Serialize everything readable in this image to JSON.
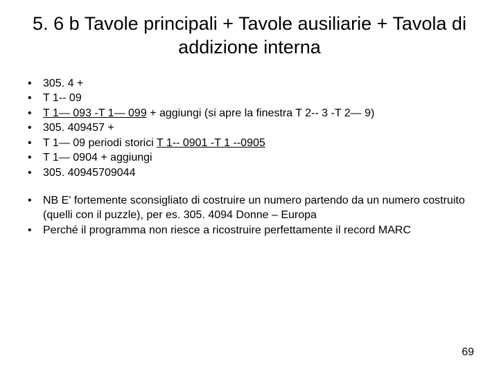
{
  "title": "5. 6 b Tavole principali + Tavole ausiliarie + Tavola di addizione interna",
  "list1": {
    "i0": "305. 4 +",
    "i1": "T 1-- 09",
    "i2a": "T 1— 093 -T 1— 099",
    "i2b": " + aggiungi (si apre la finestra T 2-- 3 -T 2— 9)",
    "i3": "305. 409457 +",
    "i4a": "T 1— 09  periodi storici ",
    "i4b": "T 1-- 0901 -T 1 --0905",
    "i5": "T 1— 0904 + aggiungi",
    "i6": " 305. 40945709044"
  },
  "list2": {
    "i0": "NB E' fortemente sconsigliato di costruire un numero partendo da un numero costruito (quelli con il puzzle), per es. 305. 4094 Donne – Europa",
    "i1": "Perché il programma non riesce a ricostruire perfettamente il record MARC"
  },
  "pageNumber": "69",
  "colors": {
    "bg": "#ffffff",
    "text": "#000000"
  },
  "fonts": {
    "title_size_pt": 27,
    "body_size_pt": 16,
    "family": "Arial"
  }
}
